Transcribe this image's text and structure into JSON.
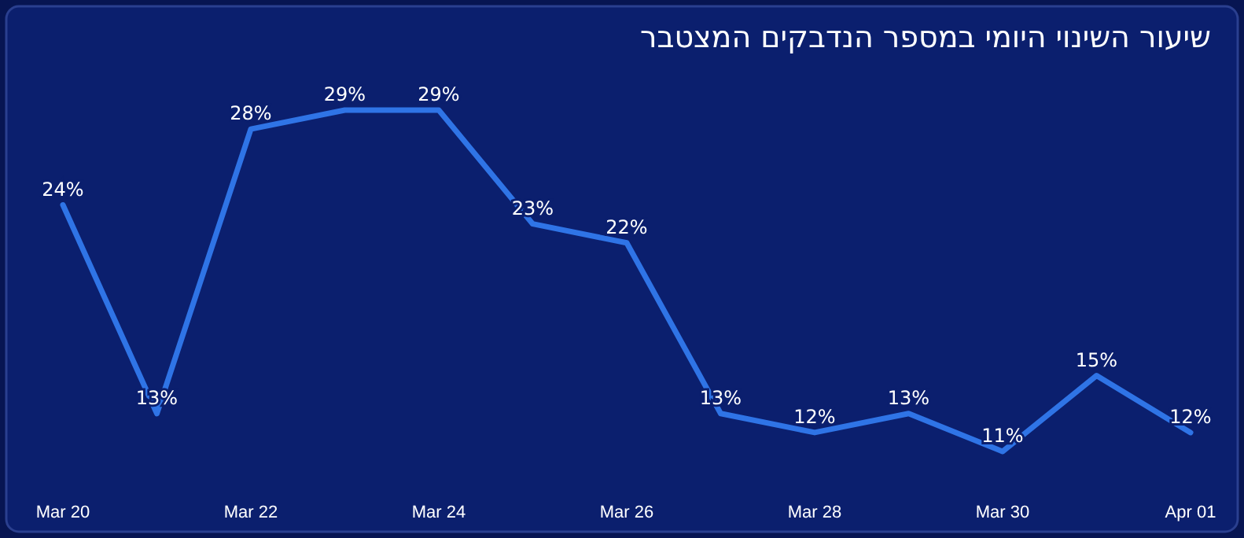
{
  "chart_data": {
    "type": "line",
    "title": "שיעור השינוי היומי במספר הנדבקים המצטבר",
    "x": [
      "--03-20",
      "--03-21",
      "--03-22",
      "--03-23",
      "--03-24",
      "--03-25",
      "--03-26",
      "--03-27",
      "--03-28",
      "--03-29",
      "--03-30",
      "--03-31",
      "--04-01"
    ],
    "series": [
      {
        "color": "#2f74e6",
        "values": [
          24,
          13,
          28,
          29,
          29,
          23,
          22,
          13,
          12,
          13,
          11,
          15,
          12
        ],
        "value_labels": [
          "24%",
          "13%",
          "28%",
          "29%",
          "29%",
          "23%",
          "22%",
          "13%",
          "12%",
          "13%",
          "11%",
          "15%",
          "12%"
        ]
      }
    ],
    "xticks": [
      {
        "value": "--03-20",
        "label": "Mar 20"
      },
      {
        "value": "--03-22",
        "label": "Mar 22"
      },
      {
        "value": "--03-24",
        "label": "Mar 24"
      },
      {
        "value": "--03-26",
        "label": "Mar 26"
      },
      {
        "value": "--03-28",
        "label": "Mar 28"
      },
      {
        "value": "--03-30",
        "label": "Mar 30"
      },
      {
        "value": "--04-01",
        "label": "Apr 01"
      }
    ],
    "xlim": [
      "--03-20",
      "--04-01"
    ],
    "tick_labels": "x",
    "marker": "none",
    "line_style": "solid"
  }
}
